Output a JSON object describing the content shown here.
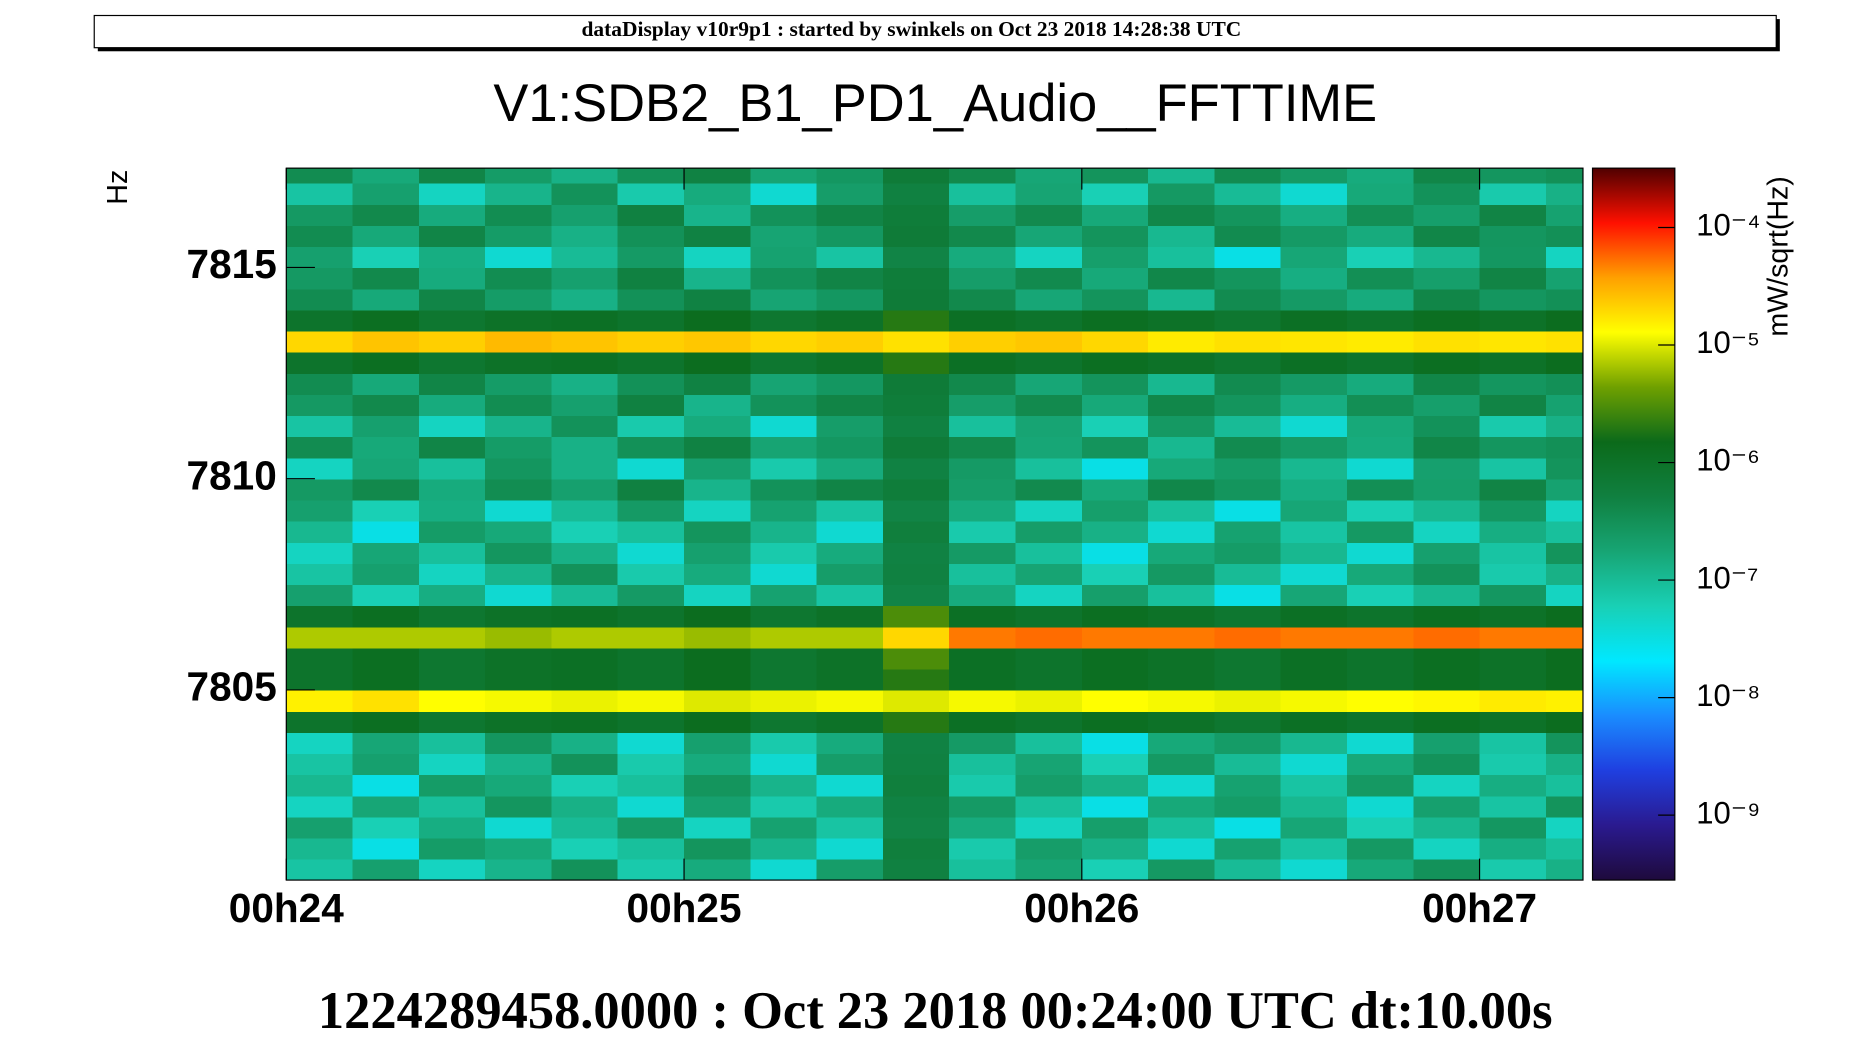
{
  "header": "dataDisplay v10r9p1 : started by swinkels on Oct 23 2018 14:28:38 UTC",
  "chart_data": {
    "type": "heatmap",
    "title": "V1:SDB2_B1_PD1_Audio__FFTTIME",
    "ylabel": "Hz",
    "zlabel": "mW/sqrt(Hz)",
    "footer": "1224289458.0000 : Oct 23 2018 00:24:00 UTC dt:10.00s",
    "xlim": [
      24,
      27.26
    ],
    "xticks": [
      {
        "value": 24,
        "label": "00h24"
      },
      {
        "value": 25,
        "label": "00h25"
      },
      {
        "value": 26,
        "label": "00h26"
      },
      {
        "value": 27,
        "label": "00h27"
      }
    ],
    "ylim": [
      7800.5,
      7817.35
    ],
    "yticks": [
      7805,
      7810,
      7815
    ],
    "log_z": true,
    "zlim": [
      2.8e-10,
      0.00032
    ],
    "zticks": [
      {
        "value": 1e-09,
        "label": "10⁻⁹"
      },
      {
        "value": 1e-08,
        "label": "10⁻⁸"
      },
      {
        "value": 1e-07,
        "label": "10⁻⁷"
      },
      {
        "value": 1e-06,
        "label": "10⁻⁶"
      },
      {
        "value": 1e-05,
        "label": "10⁻⁵"
      },
      {
        "value": 0.0001,
        "label": "10⁻⁴"
      }
    ],
    "colorscale": [
      "#1e0a3c",
      "#2a1a8f",
      "#1f3fe0",
      "#1a8cff",
      "#00e8ff",
      "#19d0b5",
      "#17a574",
      "#108040",
      "#0b6a1a",
      "#6fa000",
      "#ffff00",
      "#ffa000",
      "#ff1000",
      "#500000"
    ],
    "xbins": [
      24,
      24.1667,
      24.3333,
      24.5,
      24.6667,
      24.8333,
      25,
      25.1667,
      25.3333,
      25.5,
      25.6667,
      25.8333,
      26,
      26.1667,
      26.3333,
      26.5,
      26.6667,
      26.8333,
      27,
      27.1667,
      27.3333
    ],
    "ybins": [
      7800.5,
      7801,
      7801.5,
      7802,
      7802.5,
      7803,
      7803.5,
      7804,
      7804.5,
      7805,
      7805.5,
      7806,
      7806.5,
      7807,
      7807.5,
      7808,
      7808.5,
      7809,
      7809.5,
      7810,
      7810.5,
      7811,
      7811.5,
      7812,
      7812.5,
      7813,
      7813.5,
      7814,
      7814.5,
      7815,
      7815.5,
      7816,
      7816.5,
      7817,
      7817.5
    ],
    "z": [
      [
        8e-08,
        2e-07,
        5e-08,
        1.2e-07,
        3e-07,
        7e-08,
        1.5e-07,
        4e-08,
        2.2e-07,
        5e-07,
        9e-08,
        1.8e-07,
        6e-08,
        2.5e-07,
        1e-07,
        4e-08,
        1.6e-07,
        3e-07,
        7e-08,
        1.3e-07
      ],
      [
        1.1e-07,
        3e-08,
        2.3e-07,
        1.6e-07,
        6e-08,
        9e-08,
        2.8e-07,
        1.2e-07,
        4e-08,
        5.5e-07,
        7e-08,
        2.2e-07,
        1.3e-07,
        4e-08,
        1.9e-07,
        8e-08,
        2.5e-07,
        5e-08,
        1.4e-07,
        9e-08
      ],
      [
        2e-07,
        6e-08,
        1.4e-07,
        4e-08,
        1e-07,
        2.4e-07,
        5e-08,
        1.9e-07,
        8e-08,
        4.5e-07,
        1.5e-07,
        5e-08,
        2.1e-07,
        9e-08,
        3e-08,
        1.7e-07,
        6e-08,
        1.1e-07,
        2.6e-07,
        5e-08
      ],
      [
        5e-08,
        1.7e-07,
        9e-08,
        2.7e-07,
        1.3e-07,
        4e-08,
        2e-07,
        7e-08,
        1.5e-07,
        4.8e-07,
        2.4e-07,
        9e-08,
        3e-08,
        1.6e-07,
        2.3e-07,
        1.1e-07,
        4e-08,
        2e-07,
        8e-08,
        2.9e-07
      ],
      [
        1.1e-07,
        3e-08,
        2.3e-07,
        1.6e-07,
        6e-08,
        9e-08,
        2.8e-07,
        1.2e-07,
        4e-08,
        5.5e-07,
        7e-08,
        2.2e-07,
        1.3e-07,
        4e-08,
        1.9e-07,
        8e-08,
        2.5e-07,
        5e-08,
        1.4e-07,
        9e-08
      ],
      [
        8e-08,
        2e-07,
        5e-08,
        1.2e-07,
        3e-07,
        7e-08,
        1.5e-07,
        4e-08,
        2.2e-07,
        5e-07,
        9e-08,
        1.8e-07,
        6e-08,
        2.5e-07,
        1e-07,
        4e-08,
        1.6e-07,
        3e-07,
        7e-08,
        1.3e-07
      ],
      [
        5e-08,
        1.7e-07,
        9e-08,
        2.7e-07,
        1.3e-07,
        4e-08,
        2e-07,
        7e-08,
        1.5e-07,
        4.8e-07,
        2.4e-07,
        9e-08,
        3e-08,
        1.6e-07,
        2.3e-07,
        1.1e-07,
        4e-08,
        2e-07,
        8e-08,
        2.9e-07
      ],
      [
        9e-07,
        1.2e-06,
        8e-07,
        1e-06,
        1.1e-06,
        9e-07,
        1.3e-06,
        8e-07,
        1e-06,
        2e-06,
        1.1e-06,
        9e-07,
        1.2e-06,
        1e-06,
        8e-07,
        1.1e-06,
        9e-07,
        1.2e-06,
        1e-06,
        1.3e-06
      ],
      [
        1.5e-05,
        1.8e-05,
        1.3e-05,
        1.2e-05,
        1.1e-05,
        1.2e-05,
        1e-05,
        1.1e-05,
        1.2e-05,
        1e-05,
        1.2e-05,
        1.1e-05,
        1.3e-05,
        1.2e-05,
        1.1e-05,
        1.2e-05,
        1.3e-05,
        1.4e-05,
        1.6e-05,
        1.5e-05
      ],
      [
        9e-07,
        1.2e-06,
        8e-07,
        1e-06,
        1.1e-06,
        9e-07,
        1.3e-06,
        8e-07,
        1e-06,
        2e-06,
        1.1e-06,
        9e-07,
        1.2e-06,
        1e-06,
        8e-07,
        1.1e-06,
        9e-07,
        1.2e-06,
        1e-06,
        1.3e-06
      ],
      [
        9e-07,
        1.2e-06,
        8e-07,
        1e-06,
        1.1e-06,
        9e-07,
        1.3e-06,
        8e-07,
        1e-06,
        3e-06,
        1.1e-06,
        9e-07,
        1.2e-06,
        1e-06,
        8e-07,
        1.1e-06,
        9e-07,
        1.2e-06,
        1e-06,
        1.3e-06
      ],
      [
        7e-06,
        7e-06,
        7e-06,
        6e-06,
        7e-06,
        7e-06,
        6e-06,
        7e-06,
        7e-06,
        2e-05,
        5e-05,
        5.5e-05,
        5e-05,
        5e-05,
        5.5e-05,
        5e-05,
        5e-05,
        5.5e-05,
        5e-05,
        5e-05
      ],
      [
        9e-07,
        1.2e-06,
        8e-07,
        1e-06,
        1.1e-06,
        9e-07,
        1.3e-06,
        8e-07,
        1e-06,
        3e-06,
        1.1e-06,
        9e-07,
        1.2e-06,
        1e-06,
        8e-07,
        1.1e-06,
        9e-07,
        1.2e-06,
        1e-06,
        1.3e-06
      ],
      [
        2e-07,
        6e-08,
        1.4e-07,
        4e-08,
        1e-07,
        2.4e-07,
        5e-08,
        1.9e-07,
        8e-08,
        4.5e-07,
        1.5e-07,
        5e-08,
        2.1e-07,
        9e-08,
        3e-08,
        1.7e-07,
        6e-08,
        1.1e-07,
        2.6e-07,
        5e-08
      ],
      [
        8e-08,
        2e-07,
        5e-08,
        1.2e-07,
        3e-07,
        7e-08,
        1.5e-07,
        4e-08,
        2.2e-07,
        5e-07,
        9e-08,
        1.8e-07,
        6e-08,
        2.5e-07,
        1e-07,
        4e-08,
        1.6e-07,
        3e-07,
        7e-08,
        1.3e-07
      ],
      [
        5e-08,
        1.7e-07,
        9e-08,
        2.7e-07,
        1.3e-07,
        4e-08,
        2e-07,
        7e-08,
        1.5e-07,
        4.8e-07,
        2.4e-07,
        9e-08,
        3e-08,
        1.6e-07,
        2.3e-07,
        1.1e-07,
        4e-08,
        2e-07,
        8e-08,
        2.9e-07
      ],
      [
        1.1e-07,
        3e-08,
        2.3e-07,
        1.6e-07,
        6e-08,
        9e-08,
        2.8e-07,
        1.2e-07,
        4e-08,
        5.5e-07,
        7e-08,
        2.2e-07,
        1.3e-07,
        4e-08,
        1.9e-07,
        8e-08,
        2.5e-07,
        5e-08,
        1.4e-07,
        9e-08
      ],
      [
        2e-07,
        6e-08,
        1.4e-07,
        4e-08,
        1e-07,
        2.4e-07,
        5e-08,
        1.9e-07,
        8e-08,
        4.5e-07,
        1.5e-07,
        5e-08,
        2.1e-07,
        9e-08,
        3e-08,
        1.7e-07,
        6e-08,
        1.1e-07,
        2.6e-07,
        5e-08
      ],
      [
        2.5e-07,
        4e-07,
        1.5e-07,
        3.5e-07,
        2e-07,
        5e-07,
        1.2e-07,
        3e-07,
        4.5e-07,
        6e-07,
        2.2e-07,
        3.8e-07,
        1.6e-07,
        4.2e-07,
        2.8e-07,
        1.4e-07,
        3.3e-07,
        2.1e-07,
        4.6e-07,
        1.9e-07
      ],
      [
        5e-08,
        1.7e-07,
        9e-08,
        2.7e-07,
        1.3e-07,
        4e-08,
        2e-07,
        7e-08,
        1.5e-07,
        4.8e-07,
        2.4e-07,
        9e-08,
        3e-08,
        1.6e-07,
        2.3e-07,
        1.1e-07,
        4e-08,
        2e-07,
        8e-08,
        2.9e-07
      ],
      [
        3.6e-07,
        1.6e-07,
        4.4e-07,
        2.3e-07,
        1.3e-07,
        3.1e-07,
        4.8e-07,
        1.8e-07,
        2.6e-07,
        6.5e-07,
        4e-07,
        1.7e-07,
        2.9e-07,
        1.1e-07,
        3.7e-07,
        2.4e-07,
        1.5e-07,
        4.3e-07,
        2.7e-07,
        3.2e-07
      ],
      [
        8e-08,
        2e-07,
        5e-08,
        1.2e-07,
        3e-07,
        7e-08,
        1.5e-07,
        4e-08,
        2.2e-07,
        5e-07,
        9e-08,
        1.8e-07,
        6e-08,
        2.5e-07,
        1e-07,
        4e-08,
        1.6e-07,
        3e-07,
        7e-08,
        1.3e-07
      ],
      [
        2.5e-07,
        4e-07,
        1.5e-07,
        3.5e-07,
        2e-07,
        5e-07,
        1.2e-07,
        3e-07,
        4.5e-07,
        6e-07,
        2.2e-07,
        3.8e-07,
        1.6e-07,
        4.2e-07,
        2.8e-07,
        1.4e-07,
        3.3e-07,
        2.1e-07,
        4.6e-07,
        1.9e-07
      ],
      [
        3.6e-07,
        1.6e-07,
        4.4e-07,
        2.3e-07,
        1.3e-07,
        3.1e-07,
        4.8e-07,
        1.8e-07,
        2.6e-07,
        6.5e-07,
        4e-07,
        1.7e-07,
        2.9e-07,
        1.1e-07,
        3.7e-07,
        2.4e-07,
        1.5e-07,
        4.3e-07,
        2.7e-07,
        3.2e-07
      ],
      [
        9e-07,
        1.2e-06,
        8e-07,
        1e-06,
        1.1e-06,
        9e-07,
        1.3e-06,
        8e-07,
        1e-06,
        2e-06,
        1.1e-06,
        9e-07,
        1.2e-06,
        1e-06,
        8e-07,
        1.1e-06,
        9e-07,
        1.2e-06,
        1e-06,
        1.3e-06
      ],
      [
        2e-05,
        2.5e-05,
        2.2e-05,
        2.8e-05,
        2.5e-05,
        2.2e-05,
        2.4e-05,
        2e-05,
        2.2e-05,
        1.8e-05,
        2.2e-05,
        2.4e-05,
        2e-05,
        1.6e-05,
        1.8e-05,
        1.7e-05,
        1.6e-05,
        1.8e-05,
        1.7e-05,
        1.8e-05
      ],
      [
        9e-07,
        1.2e-06,
        8e-07,
        1e-06,
        1.1e-06,
        9e-07,
        1.3e-06,
        8e-07,
        1e-06,
        2e-06,
        1.1e-06,
        9e-07,
        1.2e-06,
        1e-06,
        8e-07,
        1.1e-06,
        9e-07,
        1.2e-06,
        1e-06,
        1.3e-06
      ],
      [
        3.6e-07,
        1.6e-07,
        4.4e-07,
        2.3e-07,
        1.3e-07,
        3.1e-07,
        4.8e-07,
        1.8e-07,
        2.6e-07,
        6.5e-07,
        4e-07,
        1.7e-07,
        2.9e-07,
        1.1e-07,
        3.7e-07,
        2.4e-07,
        1.5e-07,
        4.3e-07,
        2.7e-07,
        3.2e-07
      ],
      [
        2.5e-07,
        4e-07,
        1.5e-07,
        3.5e-07,
        2e-07,
        5e-07,
        1.2e-07,
        3e-07,
        4.5e-07,
        6e-07,
        2.2e-07,
        3.8e-07,
        1.6e-07,
        4.2e-07,
        2.8e-07,
        1.4e-07,
        3.3e-07,
        2.1e-07,
        4.6e-07,
        1.9e-07
      ],
      [
        2e-07,
        6e-08,
        1.4e-07,
        4e-08,
        1e-07,
        2.4e-07,
        5e-08,
        1.9e-07,
        8e-08,
        4.5e-07,
        1.5e-07,
        5e-08,
        2.1e-07,
        9e-08,
        3e-08,
        1.7e-07,
        6e-08,
        1.1e-07,
        2.6e-07,
        5e-08
      ],
      [
        3.6e-07,
        1.6e-07,
        4.4e-07,
        2.3e-07,
        1.3e-07,
        3.1e-07,
        4.8e-07,
        1.8e-07,
        2.6e-07,
        6.5e-07,
        4e-07,
        1.7e-07,
        2.9e-07,
        1.1e-07,
        3.7e-07,
        2.4e-07,
        1.5e-07,
        4.3e-07,
        2.7e-07,
        3.2e-07
      ],
      [
        2.5e-07,
        4e-07,
        1.5e-07,
        3.5e-07,
        2e-07,
        5e-07,
        1.2e-07,
        3e-07,
        4.5e-07,
        6e-07,
        2.2e-07,
        3.8e-07,
        1.6e-07,
        4.2e-07,
        2.8e-07,
        1.4e-07,
        3.3e-07,
        2.1e-07,
        4.6e-07,
        1.9e-07
      ],
      [
        8e-08,
        2e-07,
        5e-08,
        1.2e-07,
        3e-07,
        7e-08,
        1.5e-07,
        4e-08,
        2.2e-07,
        5e-07,
        9e-08,
        1.8e-07,
        6e-08,
        2.5e-07,
        1e-07,
        4e-08,
        1.6e-07,
        3e-07,
        7e-08,
        1.3e-07
      ],
      [
        3.6e-07,
        1.6e-07,
        4.4e-07,
        2.3e-07,
        1.3e-07,
        3.1e-07,
        4.8e-07,
        1.8e-07,
        2.6e-07,
        6.5e-07,
        4e-07,
        1.7e-07,
        2.9e-07,
        1.1e-07,
        3.7e-07,
        2.4e-07,
        1.5e-07,
        4.3e-07,
        2.7e-07,
        3.2e-07
      ]
    ]
  }
}
